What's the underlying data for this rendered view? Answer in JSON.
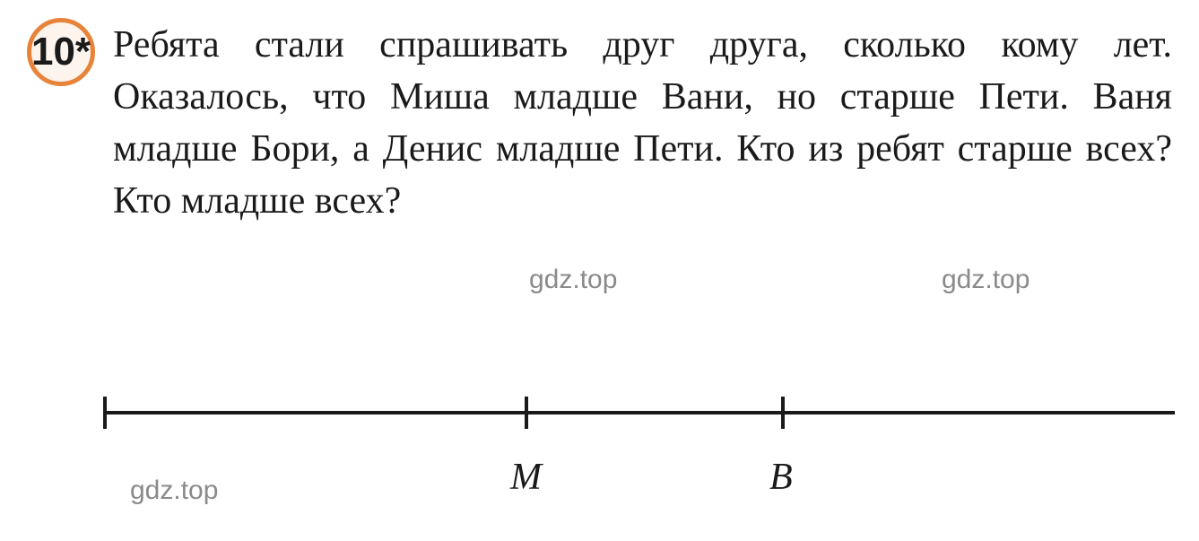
{
  "problem": {
    "number": "10*",
    "text": "Ребята стали спрашивать друг друга, сколько кому лет. Оказалось, что Миша младше Вани, но старше Пети. Ваня младше Бори, а Денис младше Пети. Кто из ребят старше всех? Кто младше всех?",
    "number_circle_border_color": "#e8833a",
    "number_circle_bg_color": "#fdf4ed",
    "text_color": "#1a1a1a",
    "fontsize": 42
  },
  "watermark": {
    "text": "gdz.top",
    "color": "#8a8a8a",
    "fontsize": 30
  },
  "number_line": {
    "line_color": "#1a1a1a",
    "line_thickness": 4,
    "tick_height": 36,
    "ticks": [
      {
        "position": 0,
        "label": null
      },
      {
        "position": 470,
        "label": "M"
      },
      {
        "position": 756,
        "label": "B"
      }
    ],
    "label_fontsize": 42,
    "label_style": "italic"
  }
}
